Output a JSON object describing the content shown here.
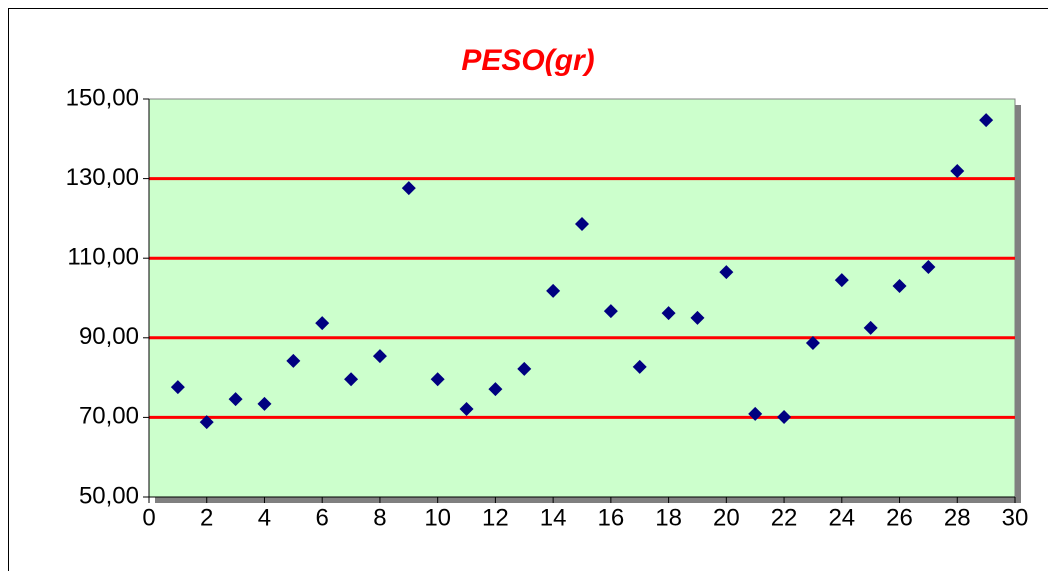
{
  "chart_data": {
    "type": "scatter",
    "title": "PESO(gr)",
    "x": [
      1,
      2,
      3,
      4,
      5,
      6,
      7,
      8,
      9,
      10,
      11,
      12,
      13,
      14,
      15,
      16,
      17,
      18,
      19,
      20,
      21,
      22,
      23,
      24,
      25,
      26,
      27,
      28,
      29
    ],
    "series": [
      {
        "color": "#000080",
        "values": [
          77.6,
          68.8,
          74.6,
          73.4,
          84.2,
          93.7,
          79.6,
          85.4,
          127.6,
          79.6,
          72.1,
          77.1,
          82.2,
          101.8,
          118.6,
          96.7,
          82.7,
          96.2,
          95.0,
          106.5,
          70.9,
          70.1,
          88.7,
          104.5,
          92.5,
          103.0,
          107.8,
          131.9,
          144.7
        ]
      }
    ],
    "xlim": [
      0,
      30
    ],
    "xticks": [
      0,
      2,
      4,
      6,
      8,
      10,
      12,
      14,
      16,
      18,
      20,
      22,
      24,
      26,
      28,
      30
    ],
    "ylim": [
      50,
      150
    ],
    "yticks": [
      {
        "value": 50,
        "label": "50,00"
      },
      {
        "value": 70,
        "label": "70,00"
      },
      {
        "value": 90,
        "label": "90,00"
      },
      {
        "value": 110,
        "label": "110,00"
      },
      {
        "value": 130,
        "label": "130,00"
      },
      {
        "value": 150,
        "label": "150,00"
      }
    ],
    "grid": true,
    "grid_color": "#ff0000",
    "background": "#ccffcc"
  }
}
